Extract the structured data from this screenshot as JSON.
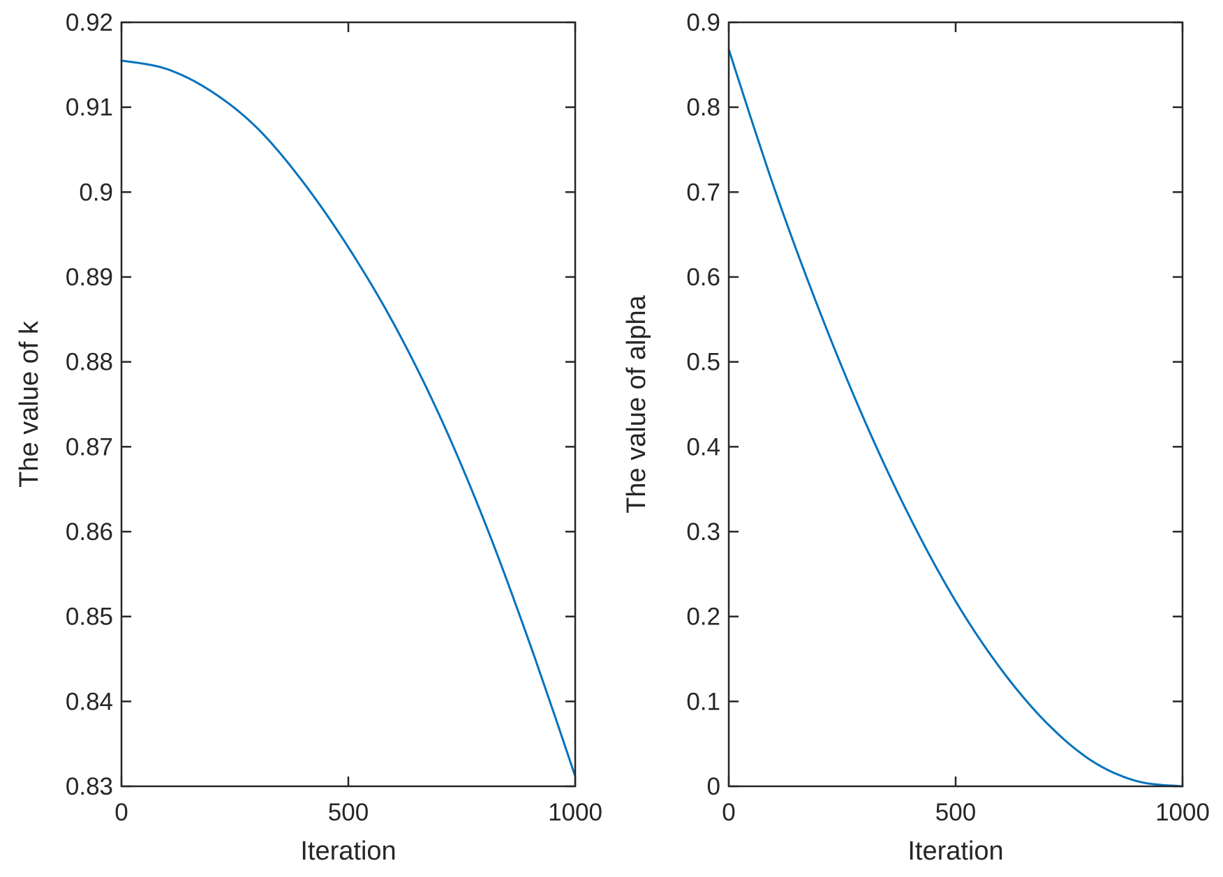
{
  "chart_data": [
    {
      "type": "line",
      "xlabel": "Iteration",
      "ylabel": "The value of k",
      "xlim": [
        0,
        1000
      ],
      "ylim": [
        0.83,
        0.92
      ],
      "xticks": [
        0,
        500,
        1000
      ],
      "xtick_labels": [
        "0",
        "500",
        "1000"
      ],
      "yticks": [
        0.83,
        0.84,
        0.85,
        0.86,
        0.87,
        0.88,
        0.89,
        0.9,
        0.91,
        0.92
      ],
      "ytick_labels": [
        "0.83",
        "0.84",
        "0.85",
        "0.86",
        "0.87",
        "0.88",
        "0.89",
        "0.9",
        "0.91",
        "0.92"
      ],
      "grid": false,
      "series_color": "#0072BD",
      "x": [
        0,
        100,
        200,
        300,
        400,
        500,
        600,
        700,
        800,
        900,
        1000
      ],
      "y": [
        0.9155,
        0.9145,
        0.9118,
        0.9075,
        0.9012,
        0.8935,
        0.8845,
        0.8738,
        0.8612,
        0.8468,
        0.8312
      ]
    },
    {
      "type": "line",
      "xlabel": "Iteration",
      "ylabel": "The value of alpha",
      "xlim": [
        0,
        1000
      ],
      "ylim": [
        0,
        0.9
      ],
      "xticks": [
        0,
        500,
        1000
      ],
      "xtick_labels": [
        "0",
        "500",
        "1000"
      ],
      "yticks": [
        0,
        0.1,
        0.2,
        0.3,
        0.4,
        0.5,
        0.6,
        0.7,
        0.8,
        0.9
      ],
      "ytick_labels": [
        "0",
        "0.1",
        "0.2",
        "0.3",
        "0.4",
        "0.5",
        "0.6",
        "0.7",
        "0.8",
        "0.9"
      ],
      "grid": false,
      "series_color": "#0072BD",
      "x": [
        0,
        100,
        200,
        300,
        400,
        500,
        600,
        700,
        800,
        900,
        1000
      ],
      "y": [
        0.868,
        0.705,
        0.56,
        0.43,
        0.316,
        0.218,
        0.138,
        0.075,
        0.03,
        0.006,
        0.0
      ]
    }
  ]
}
